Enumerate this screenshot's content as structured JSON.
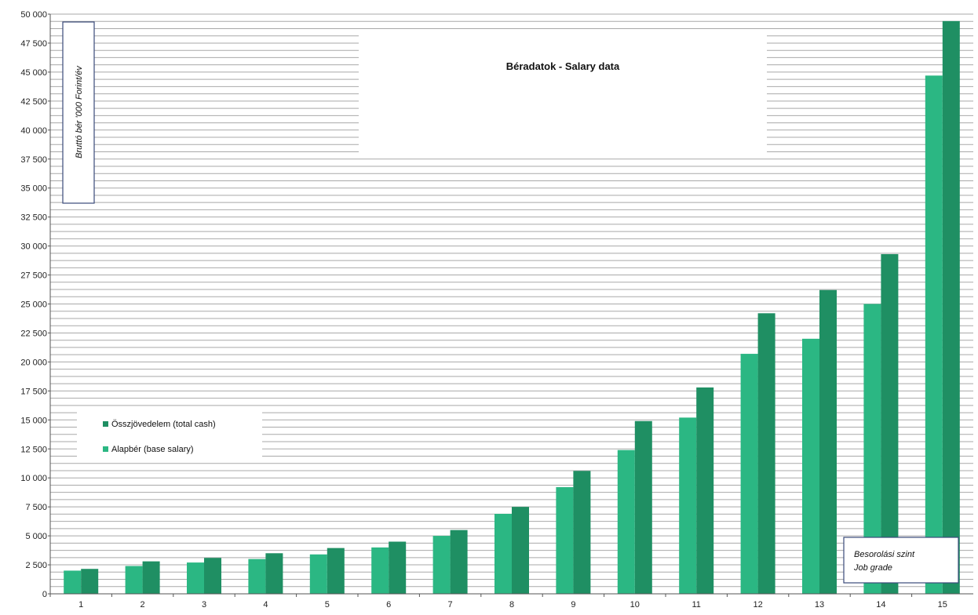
{
  "chart_data": {
    "type": "bar",
    "title": "Béradatok - Salary data",
    "ylabel": "Bruttó bér '000 Forint/év",
    "xlabel_lines": [
      "Besorolási szint",
      "Job grade"
    ],
    "categories": [
      "1",
      "2",
      "3",
      "4",
      "5",
      "6",
      "7",
      "8",
      "9",
      "10",
      "11",
      "12",
      "13",
      "14",
      "15"
    ],
    "series": [
      {
        "name": "Alapbér (base salary)",
        "color": "#2bb783",
        "values": [
          2000,
          2400,
          2700,
          3000,
          3400,
          4000,
          5000,
          6900,
          9200,
          12400,
          15200,
          20700,
          22000,
          25000,
          44700
        ]
      },
      {
        "name": "Összjövedelem (total cash)",
        "color": "#1f8f63",
        "values": [
          2150,
          2800,
          3100,
          3500,
          3950,
          4500,
          5500,
          7500,
          10600,
          14900,
          17800,
          24200,
          26200,
          29300,
          49400
        ]
      }
    ],
    "legend_order": [
      1,
      0
    ],
    "ylim": [
      0,
      50000
    ],
    "ytick_step": 2500,
    "ytick_labels": [
      "0",
      "2 500",
      "5 000",
      "7 500",
      "10 000",
      "12 500",
      "15 000",
      "17 500",
      "20 000",
      "22 500",
      "25 000",
      "27 500",
      "30 000",
      "32 500",
      "35 000",
      "37 500",
      "40 000",
      "42 500",
      "45 000",
      "47 500",
      "50 000"
    ],
    "grid": true,
    "legend_position": "center-left"
  }
}
